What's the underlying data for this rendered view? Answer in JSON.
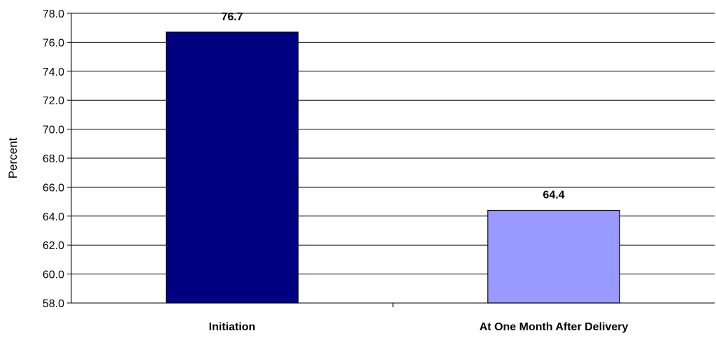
{
  "chart_data": {
    "type": "bar",
    "title": "",
    "xlabel": "",
    "ylabel": "Percent",
    "categories": [
      "Initiation",
      "At One Month After Delivery"
    ],
    "values": [
      76.7,
      64.4
    ],
    "data_labels": [
      "76.7",
      "64.4"
    ],
    "bar_colors": [
      "#000080",
      "#9999FF"
    ],
    "ylim": [
      58.0,
      78.0
    ],
    "yticks": [
      58.0,
      60.0,
      62.0,
      64.0,
      66.0,
      68.0,
      70.0,
      72.0,
      74.0,
      76.0,
      78.0
    ],
    "ytick_labels": [
      "58.0",
      "60.0",
      "62.0",
      "64.0",
      "66.0",
      "68.0",
      "70.0",
      "72.0",
      "74.0",
      "76.0",
      "78.0"
    ],
    "grid": true,
    "legend": "none"
  }
}
